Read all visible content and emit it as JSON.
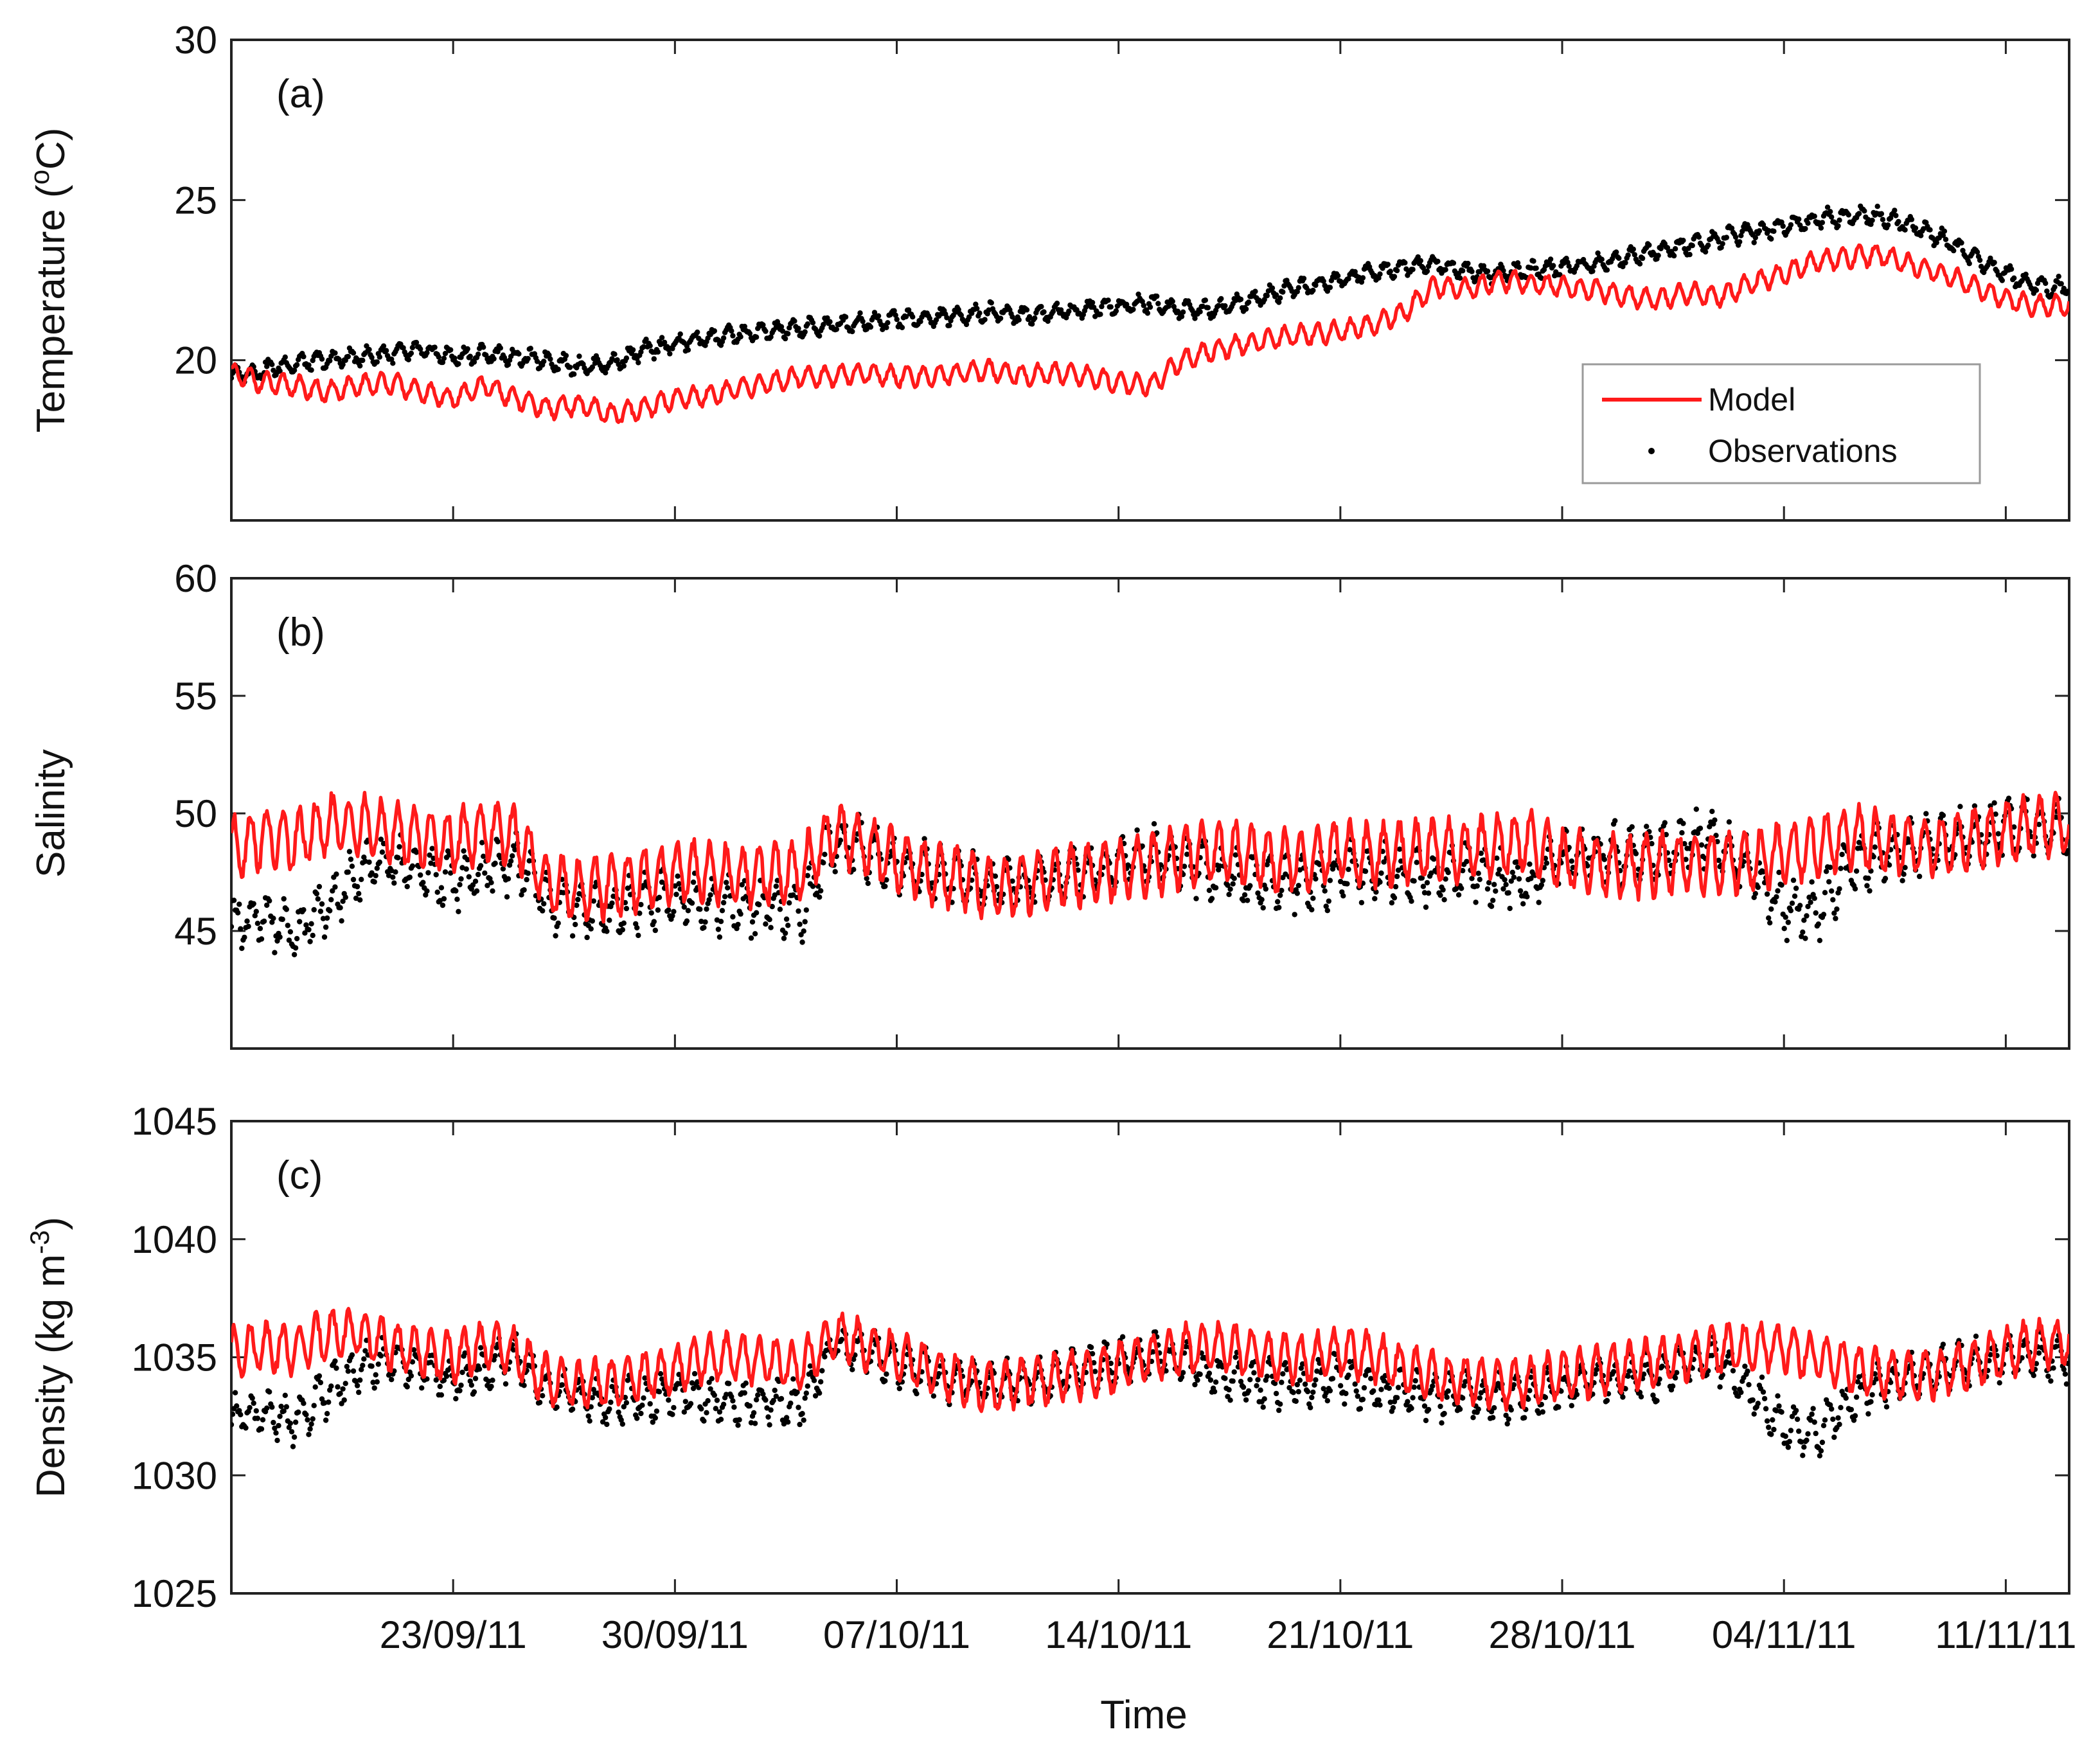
{
  "chart_data": [
    {
      "type": "line",
      "panel_label": "(a)",
      "ylabel": "Temperature (",
      "ylabel_unit_sup": "o",
      "ylabel_unit": "C)",
      "ylim": [
        15,
        30
      ],
      "yticks": [
        20,
        25,
        30
      ],
      "xlabel": "",
      "legend": {
        "placement": "lower-right",
        "entries": [
          "Model",
          "Observations"
        ]
      },
      "series": [
        {
          "name": "Model",
          "style": "red-line",
          "x": [
            0,
            1,
            2,
            3,
            4,
            5,
            6,
            7,
            8,
            9,
            10,
            11,
            12,
            13,
            14,
            15,
            16,
            17,
            18,
            19,
            20,
            21,
            22,
            23,
            24,
            25,
            26,
            27,
            28,
            29,
            30,
            31,
            32,
            33,
            34,
            35,
            36,
            37,
            38,
            39,
            40,
            41,
            42,
            43,
            44,
            45,
            46,
            47,
            48,
            49,
            50,
            51,
            52,
            53,
            54,
            55,
            56,
            57
          ],
          "values": [
            19.6,
            19.3,
            19.2,
            19.0,
            19.2,
            19.3,
            19.0,
            18.8,
            19.2,
            18.8,
            18.5,
            18.6,
            18.3,
            18.5,
            18.8,
            18.9,
            19.1,
            19.3,
            19.5,
            19.5,
            19.6,
            19.5,
            19.5,
            19.6,
            19.7,
            19.5,
            19.6,
            19.5,
            19.3,
            19.2,
            20.0,
            20.3,
            20.5,
            20.7,
            20.8,
            20.9,
            21.1,
            21.5,
            22.3,
            22.2,
            22.5,
            22.4,
            22.3,
            22.2,
            22.0,
            21.9,
            22.1,
            22.0,
            22.4,
            22.7,
            23.1,
            23.2,
            23.3,
            23.0,
            22.7,
            22.3,
            21.9,
            21.7
          ]
        },
        {
          "name": "Observations",
          "style": "black-dots",
          "x": [
            0,
            1,
            2,
            3,
            4,
            5,
            6,
            7,
            8,
            9,
            10,
            11,
            12,
            13,
            14,
            15,
            16,
            17,
            18,
            19,
            20,
            21,
            22,
            23,
            24,
            25,
            26,
            27,
            28,
            29,
            30,
            31,
            32,
            33,
            34,
            35,
            36,
            37,
            38,
            39,
            40,
            41,
            42,
            43,
            44,
            45,
            46,
            47,
            48,
            49,
            50,
            51,
            52,
            53,
            54,
            55,
            56,
            57
          ],
          "values": [
            19.5,
            19.7,
            19.9,
            20.0,
            20.1,
            20.2,
            20.3,
            20.1,
            20.2,
            20.1,
            20.0,
            19.8,
            19.9,
            20.3,
            20.5,
            20.7,
            20.8,
            20.9,
            21.0,
            21.1,
            21.2,
            21.3,
            21.3,
            21.4,
            21.5,
            21.4,
            21.5,
            21.6,
            21.7,
            21.8,
            21.6,
            21.6,
            21.8,
            22.1,
            22.3,
            22.5,
            22.8,
            22.9,
            23.0,
            22.8,
            22.7,
            22.8,
            22.9,
            23.0,
            23.2,
            23.4,
            23.6,
            23.8,
            24.0,
            24.2,
            24.4,
            24.5,
            24.5,
            24.2,
            23.8,
            23.2,
            22.7,
            22.3
          ]
        }
      ]
    },
    {
      "type": "line",
      "panel_label": "(b)",
      "ylabel": "Salinity",
      "ylim": [
        40,
        60
      ],
      "yticks": [
        45,
        50,
        55,
        60
      ],
      "legend": null,
      "series": [
        {
          "name": "Model",
          "style": "red-line",
          "x": [
            0,
            1,
            2,
            3,
            4,
            5,
            6,
            7,
            8,
            9,
            10,
            11,
            12,
            13,
            14,
            15,
            16,
            17,
            18,
            19,
            20,
            21,
            22,
            23,
            24,
            25,
            26,
            27,
            28,
            29,
            30,
            31,
            32,
            33,
            34,
            35,
            36,
            37,
            38,
            39,
            40,
            41,
            42,
            43,
            44,
            45,
            46,
            47,
            48,
            49,
            50,
            51,
            52,
            53,
            54,
            55,
            56,
            57
          ],
          "values": [
            48.5,
            49.0,
            48.8,
            49.5,
            49.5,
            49.2,
            49.0,
            48.8,
            49.3,
            49.0,
            47.0,
            46.8,
            46.9,
            47.2,
            47.5,
            47.5,
            47.3,
            47.4,
            47.6,
            49.2,
            48.6,
            48.0,
            47.5,
            47.2,
            46.8,
            47.0,
            47.2,
            47.4,
            47.6,
            47.8,
            48.2,
            48.4,
            48.3,
            48.0,
            48.0,
            48.5,
            48.2,
            48.3,
            48.5,
            48.4,
            48.7,
            48.8,
            48.0,
            47.8,
            47.7,
            47.8,
            47.9,
            47.9,
            48.0,
            48.3,
            48.6,
            49.0,
            48.8,
            48.7,
            48.6,
            48.9,
            49.2,
            49.5
          ]
        },
        {
          "name": "Observations",
          "style": "black-dots",
          "x": [
            0,
            1,
            2,
            3,
            4,
            5,
            6,
            7,
            8,
            9,
            10,
            11,
            12,
            13,
            14,
            15,
            16,
            17,
            18,
            19,
            20,
            21,
            22,
            23,
            24,
            25,
            26,
            27,
            28,
            29,
            30,
            31,
            32,
            33,
            34,
            35,
            36,
            37,
            38,
            39,
            40,
            41,
            42,
            43,
            44,
            45,
            46,
            47,
            48,
            49,
            50,
            51,
            52,
            53,
            54,
            55,
            56,
            57
          ],
          "values": [
            45.5,
            45.5,
            45.0,
            46.0,
            47.5,
            48.0,
            47.5,
            47.0,
            47.5,
            48.0,
            46.2,
            46.0,
            45.8,
            46.2,
            46.5,
            46.2,
            46.0,
            45.9,
            45.8,
            48.8,
            48.5,
            47.8,
            47.5,
            47.2,
            47.0,
            47.0,
            47.3,
            47.5,
            48.0,
            48.2,
            48.0,
            47.5,
            47.2,
            47.0,
            47.0,
            47.5,
            47.5,
            47.3,
            47.3,
            47.5,
            47.2,
            47.0,
            48.0,
            48.5,
            48.2,
            48.3,
            48.8,
            48.9,
            47.5,
            46.0,
            45.8,
            47.5,
            48.2,
            48.5,
            48.8,
            49.0,
            49.5,
            49.5
          ]
        }
      ]
    },
    {
      "type": "line",
      "panel_label": "(c)",
      "ylabel": "Density (kg m",
      "ylabel_unit_sup": "-3",
      "ylabel_unit": ")",
      "ylim": [
        1025,
        1045
      ],
      "yticks": [
        1025,
        1030,
        1035,
        1040,
        1045
      ],
      "xlabel": "Time",
      "xtick_labels": [
        "23/09/11",
        "30/09/11",
        "07/10/11",
        "14/10/11",
        "21/10/11",
        "28/10/11",
        "04/11/11",
        "11/11/11"
      ],
      "xtick_positions": [
        7,
        14,
        21,
        28,
        35,
        42,
        49,
        56
      ],
      "xlim": [
        0,
        58
      ],
      "legend": null,
      "series": [
        {
          "name": "Model",
          "style": "red-line",
          "x": [
            0,
            1,
            2,
            3,
            4,
            5,
            6,
            7,
            8,
            9,
            10,
            11,
            12,
            13,
            14,
            15,
            16,
            17,
            18,
            19,
            20,
            21,
            22,
            23,
            24,
            25,
            26,
            27,
            28,
            29,
            30,
            31,
            32,
            33,
            34,
            35,
            36,
            37,
            38,
            39,
            40,
            41,
            42,
            43,
            44,
            45,
            46,
            47,
            48,
            49,
            50,
            51,
            52,
            53,
            54,
            55,
            56,
            57
          ],
          "values": [
            1035.2,
            1035.5,
            1035.3,
            1036.0,
            1036.0,
            1035.5,
            1035.2,
            1035.0,
            1035.5,
            1035.2,
            1034.0,
            1033.8,
            1033.9,
            1034.2,
            1034.5,
            1035.0,
            1035.0,
            1034.8,
            1034.6,
            1036.0,
            1035.5,
            1035.0,
            1034.5,
            1034.0,
            1033.7,
            1034.0,
            1034.1,
            1034.3,
            1034.6,
            1035.0,
            1035.3,
            1035.4,
            1035.3,
            1035.0,
            1034.9,
            1035.3,
            1035.0,
            1034.5,
            1034.2,
            1034.0,
            1033.9,
            1034.0,
            1034.2,
            1034.4,
            1034.6,
            1034.8,
            1035.0,
            1035.3,
            1035.5,
            1035.4,
            1035.0,
            1034.6,
            1034.3,
            1034.2,
            1034.3,
            1034.8,
            1035.2,
            1035.6
          ]
        },
        {
          "name": "Observations",
          "style": "black-dots",
          "x": [
            0,
            1,
            2,
            3,
            4,
            5,
            6,
            7,
            8,
            9,
            10,
            11,
            12,
            13,
            14,
            15,
            16,
            17,
            18,
            19,
            20,
            21,
            22,
            23,
            24,
            25,
            26,
            27,
            28,
            29,
            30,
            31,
            32,
            33,
            34,
            35,
            36,
            37,
            38,
            39,
            40,
            41,
            42,
            43,
            44,
            45,
            46,
            47,
            48,
            49,
            50,
            51,
            52,
            53,
            54,
            55,
            56,
            57
          ],
          "values": [
            1032.5,
            1032.5,
            1032.3,
            1033.5,
            1034.5,
            1035.0,
            1034.5,
            1034.0,
            1034.5,
            1035.0,
            1033.5,
            1033.3,
            1033.0,
            1033.2,
            1033.5,
            1033.3,
            1033.0,
            1033.0,
            1033.0,
            1035.5,
            1035.3,
            1034.8,
            1034.3,
            1034.0,
            1033.8,
            1033.9,
            1034.2,
            1034.5,
            1034.8,
            1035.0,
            1034.8,
            1034.3,
            1034.0,
            1033.8,
            1033.8,
            1034.2,
            1033.6,
            1033.4,
            1033.3,
            1033.4,
            1033.3,
            1033.3,
            1033.6,
            1034.2,
            1034.0,
            1034.2,
            1034.6,
            1034.8,
            1033.5,
            1032.0,
            1031.8,
            1033.0,
            1033.8,
            1034.2,
            1034.5,
            1034.8,
            1035.0,
            1035.0
          ]
        }
      ]
    }
  ]
}
